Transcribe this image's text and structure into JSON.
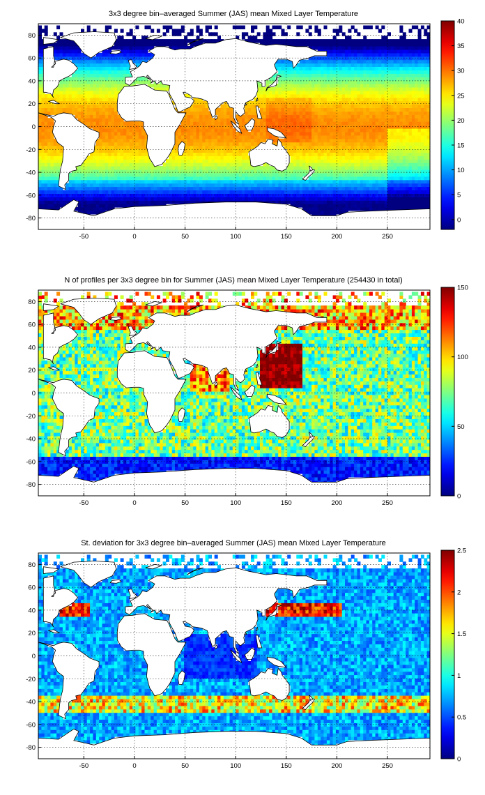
{
  "figure": {
    "panels_count": 3
  },
  "chart_data": [
    {
      "type": "heatmap",
      "title": "3x3 degree bin–averaged Summer (JAS) mean Mixed Layer Temperature",
      "xlabel": "",
      "ylabel": "",
      "xlim": [
        -95,
        292
      ],
      "ylim": [
        -90,
        90
      ],
      "xticks": [
        -50,
        0,
        50,
        100,
        150,
        200,
        250
      ],
      "yticks": [
        -80,
        -60,
        -40,
        -20,
        0,
        20,
        40,
        60,
        80
      ],
      "grid": true,
      "colorbar": {
        "range": [
          -2,
          40
        ],
        "ticks": [
          0,
          5,
          10,
          15,
          20,
          25,
          30,
          35,
          40
        ],
        "colormap": "jet"
      },
      "bin_size_deg": 3,
      "variable": "temperature"
    },
    {
      "type": "heatmap",
      "title": "N of profiles per 3x3 degree bin for Summer (JAS) mean Mixed Layer Temperature  (254430 in total)",
      "xlabel": "",
      "ylabel": "",
      "xlim": [
        -95,
        292
      ],
      "ylim": [
        -90,
        90
      ],
      "xticks": [
        -50,
        0,
        50,
        100,
        150,
        200,
        250
      ],
      "yticks": [
        -80,
        -60,
        -40,
        -20,
        0,
        20,
        40,
        60,
        80
      ],
      "grid": true,
      "colorbar": {
        "range": [
          0,
          150
        ],
        "ticks": [
          0,
          50,
          100,
          150
        ],
        "colormap": "jet"
      },
      "bin_size_deg": 3,
      "variable": "count"
    },
    {
      "type": "heatmap",
      "title": "St. deviation for 3x3 degree bin–averaged Summer (JAS) mean Mixed Layer Temperature",
      "xlabel": "",
      "ylabel": "",
      "xlim": [
        -95,
        292
      ],
      "ylim": [
        -90,
        90
      ],
      "xticks": [
        -50,
        0,
        50,
        100,
        150,
        200,
        250
      ],
      "yticks": [
        -80,
        -60,
        -40,
        -20,
        0,
        20,
        40,
        60,
        80
      ],
      "grid": true,
      "colorbar": {
        "range": [
          0,
          2.5
        ],
        "ticks": [
          0,
          0.5,
          1,
          1.5,
          2,
          2.5
        ],
        "colormap": "jet"
      },
      "bin_size_deg": 3,
      "variable": "stdev"
    }
  ]
}
